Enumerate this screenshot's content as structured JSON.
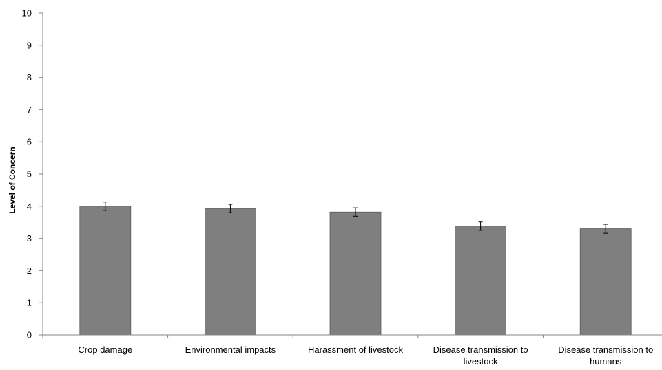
{
  "chart_data": {
    "type": "bar",
    "title": "",
    "xlabel": "",
    "ylabel": "Level of Concern",
    "ylim": [
      0,
      10
    ],
    "yticks": [
      0,
      1,
      2,
      3,
      4,
      5,
      6,
      7,
      8,
      9,
      10
    ],
    "grid": false,
    "legend": "none",
    "categories": [
      [
        "Crop damage"
      ],
      [
        "Environmental impacts"
      ],
      [
        "Harassment of livestock"
      ],
      [
        "Disease transmission to",
        "livestock"
      ],
      [
        "Disease transmission to",
        "humans"
      ]
    ],
    "values": [
      4.0,
      3.93,
      3.82,
      3.38,
      3.3
    ],
    "error": [
      0.13,
      0.13,
      0.13,
      0.13,
      0.14
    ],
    "bar_color": "#7f7f7f",
    "axis_color": "#868686"
  }
}
